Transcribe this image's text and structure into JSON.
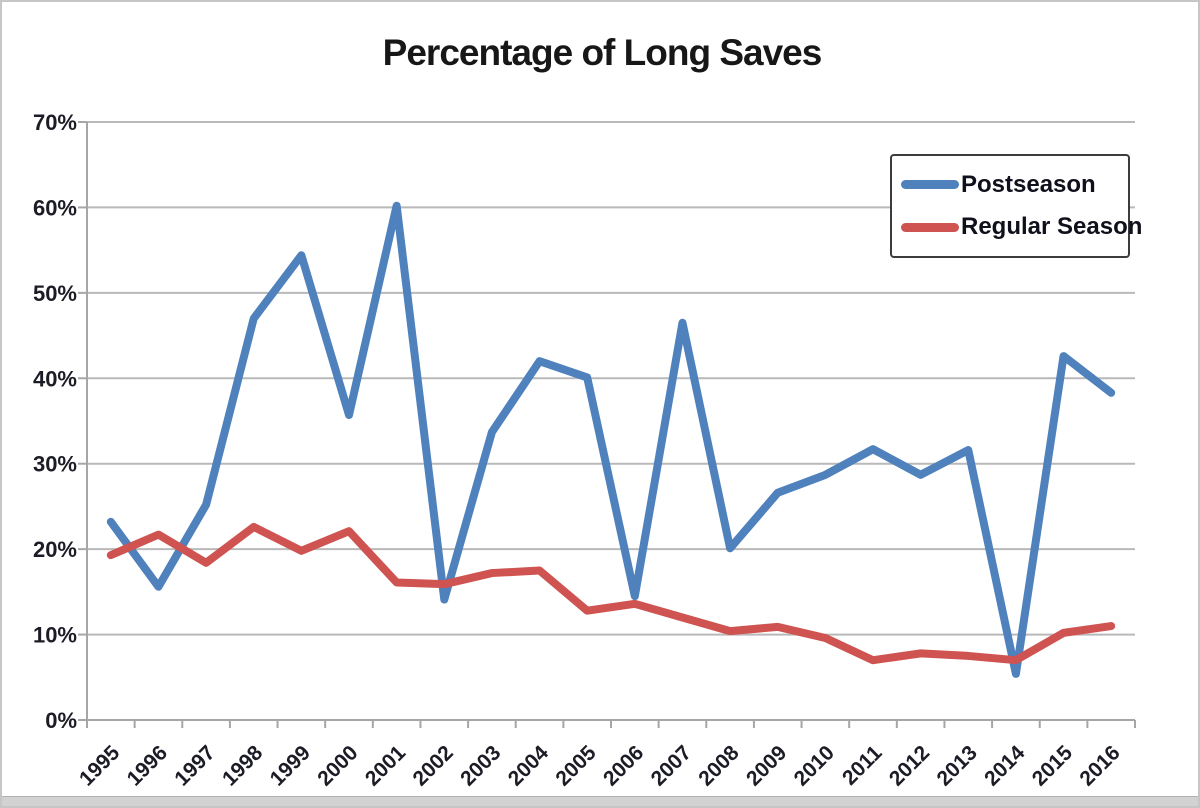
{
  "chart_data": {
    "type": "line",
    "title": "Percentage of Long Saves",
    "categories": [
      "1995",
      "1996",
      "1997",
      "1998",
      "1999",
      "2000",
      "2001",
      "2002",
      "2003",
      "2004",
      "2005",
      "2006",
      "2007",
      "2008",
      "2009",
      "2010",
      "2011",
      "2012",
      "2013",
      "2014",
      "2015",
      "2016"
    ],
    "series": [
      {
        "name": "Postseason",
        "color": "#4f81bd",
        "values": [
          23.2,
          15.6,
          25.2,
          47.0,
          54.4,
          35.7,
          60.2,
          14.1,
          33.7,
          42.0,
          40.1,
          14.5,
          46.5,
          20.1,
          26.6,
          28.7,
          31.7,
          28.7,
          31.6,
          5.4,
          42.6,
          38.3
        ]
      },
      {
        "name": "Regular Season",
        "color": "#cf5350",
        "values": [
          19.3,
          21.7,
          18.4,
          22.6,
          19.8,
          22.1,
          16.1,
          15.9,
          17.2,
          17.5,
          12.8,
          13.6,
          12.0,
          10.4,
          10.9,
          9.6,
          7.0,
          7.8,
          7.5,
          7.0,
          10.2,
          11.0
        ]
      }
    ],
    "xlabel": "",
    "ylabel": "",
    "ylim": [
      0,
      70
    ],
    "y_ticks": [
      {
        "value": 0,
        "label": "0%"
      },
      {
        "value": 10,
        "label": "10%"
      },
      {
        "value": 20,
        "label": "20%"
      },
      {
        "value": 30,
        "label": "30%"
      },
      {
        "value": 40,
        "label": "40%"
      },
      {
        "value": 50,
        "label": "50%"
      },
      {
        "value": 60,
        "label": "60%"
      },
      {
        "value": 70,
        "label": "70%"
      }
    ],
    "grid": "horizontal",
    "legend_position": "top-right",
    "style": {
      "gridline_color": "#b9b9b9",
      "axis_color": "#a6a6a6",
      "tick_label_color": "#1c1c26",
      "title_color": "#171717",
      "line_width": 8
    }
  }
}
